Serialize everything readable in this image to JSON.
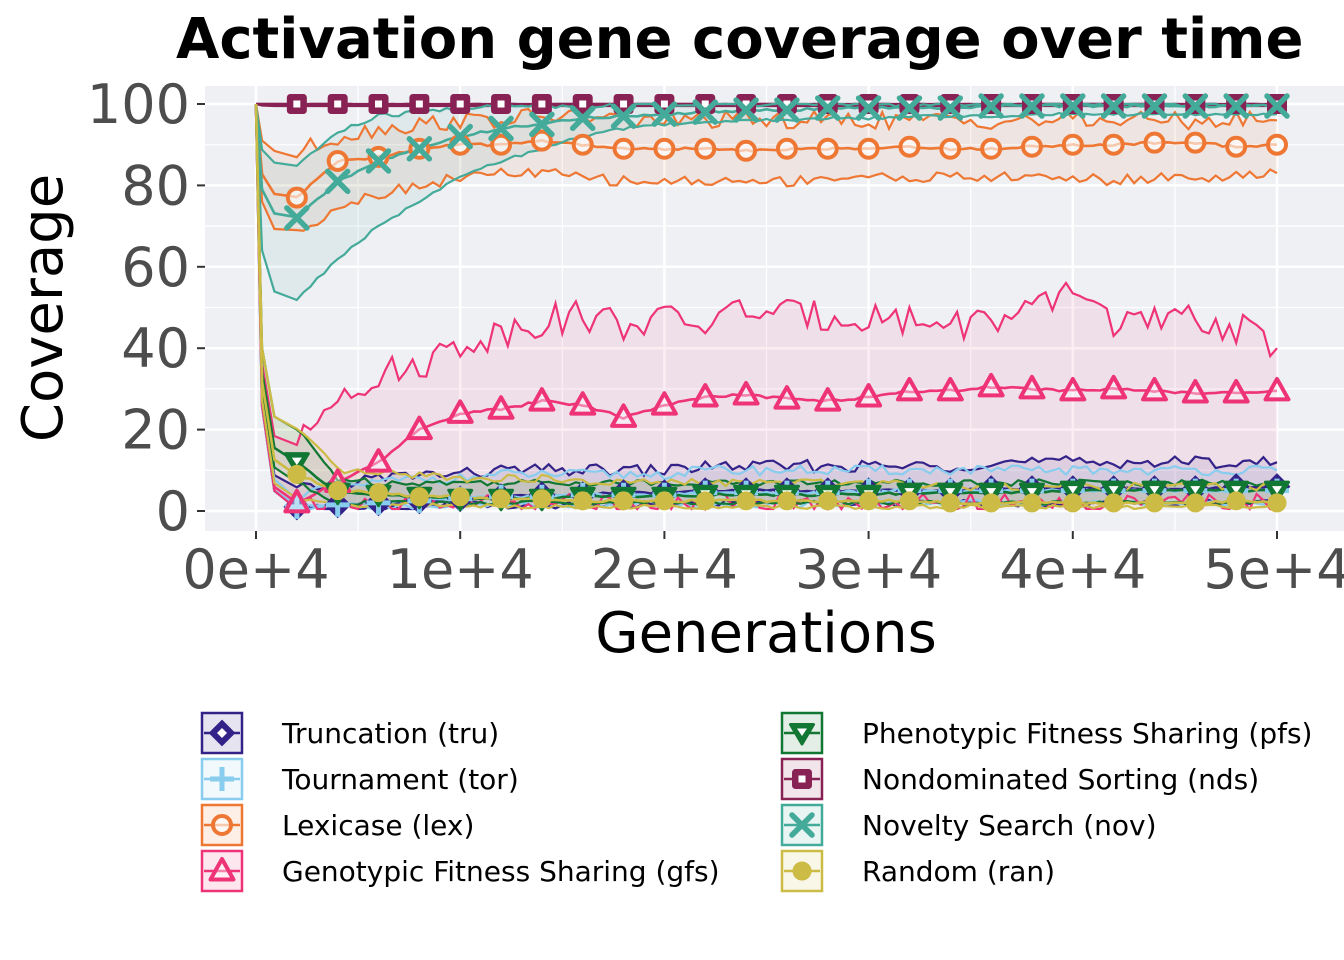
{
  "chart_data": {
    "type": "line",
    "title": "Activation gene coverage over time",
    "xlabel": "Generations",
    "ylabel": "Coverage",
    "xlim": [
      0,
      50000
    ],
    "ylim": [
      0,
      100
    ],
    "x_ticks": [
      0,
      10000,
      20000,
      30000,
      40000,
      50000
    ],
    "x_tick_labels": [
      "0e+4",
      "1e+4",
      "2e+4",
      "3e+4",
      "4e+4",
      "5e+4"
    ],
    "y_ticks": [
      0,
      20,
      40,
      60,
      80,
      100
    ],
    "y_tick_labels": [
      "0",
      "20",
      "40",
      "60",
      "80",
      "100"
    ],
    "grid": true,
    "legend_position": "bottom",
    "marker_x": [
      2000,
      4000,
      6000,
      8000,
      10000,
      12000,
      14000,
      16000,
      18000,
      20000,
      22000,
      24000,
      26000,
      28000,
      30000,
      32000,
      34000,
      36000,
      38000,
      40000,
      42000,
      44000,
      46000,
      48000,
      50000
    ],
    "series": [
      {
        "name": "Truncation (tru)",
        "color": "#332288",
        "marker": "diamond",
        "values": [
          1,
          1.5,
          2,
          2.5,
          3,
          3.5,
          4,
          4,
          4.5,
          4.5,
          5,
          5,
          5,
          5,
          5,
          5,
          5,
          5.5,
          5.5,
          5.5,
          5.5,
          5.5,
          5.5,
          6,
          6
        ],
        "upper": [
          5,
          7,
          8,
          9,
          9,
          10,
          10,
          10,
          10,
          10,
          11,
          11,
          11,
          11,
          11,
          11,
          11,
          12,
          12,
          12,
          12,
          12,
          12,
          12,
          12
        ],
        "lower": [
          1,
          1,
          1,
          1,
          1.5,
          1.5,
          1.5,
          1.5,
          1.5,
          1.5,
          2,
          2,
          2,
          2,
          2,
          2,
          2,
          2,
          2,
          2,
          2,
          2,
          2,
          2,
          2
        ]
      },
      {
        "name": "Tournament (tor)",
        "color": "#88CCEE",
        "marker": "plus",
        "values": [
          1,
          1.5,
          2,
          2.5,
          3,
          3.5,
          3.5,
          4,
          4,
          4,
          4.5,
          4.5,
          4.5,
          4.5,
          5,
          5,
          5,
          5,
          5,
          5,
          5,
          5,
          5,
          5,
          5
        ],
        "upper": [
          4,
          6,
          7,
          8,
          8,
          9,
          9,
          9,
          9,
          9,
          10,
          10,
          10,
          10,
          10,
          10,
          10,
          10,
          10,
          10,
          10,
          10,
          10,
          10,
          10
        ],
        "lower": [
          1,
          1,
          1,
          1,
          1.5,
          1.5,
          1.5,
          1.5,
          1.5,
          1.5,
          1.5,
          1.5,
          1.5,
          1.5,
          2,
          2,
          2,
          2,
          2,
          2,
          2,
          2,
          2,
          2,
          2
        ]
      },
      {
        "name": "Lexicase (lex)",
        "color": "#EE7733",
        "marker": "circle-open",
        "values": [
          77,
          86,
          87,
          89,
          90,
          90,
          91,
          90,
          89,
          89,
          89,
          88.5,
          89,
          89,
          89,
          89.5,
          89,
          89,
          89.5,
          90,
          90,
          90.5,
          90.5,
          89.5,
          90
        ],
        "upper": [
          88,
          92,
          94,
          95,
          96,
          96,
          97,
          97,
          96,
          96,
          96,
          96,
          96,
          96,
          96,
          96,
          96,
          96,
          96,
          96,
          96,
          96,
          96,
          96,
          96
        ],
        "lower": [
          68,
          75,
          78,
          80,
          82,
          83,
          83,
          82,
          81,
          81,
          81,
          81,
          81,
          82,
          82,
          82,
          82,
          82,
          82,
          82,
          81,
          82,
          82,
          82,
          83
        ]
      },
      {
        "name": "Genotypic Fitness Sharing (gfs)",
        "color": "#EE3377",
        "marker": "triangle-up",
        "values": [
          2,
          7,
          12,
          20,
          24,
          25,
          27,
          26,
          23,
          26,
          28,
          28.5,
          27.5,
          27,
          28,
          29.5,
          29.5,
          30.5,
          30,
          29.5,
          30,
          29.5,
          29,
          29,
          29.5
        ],
        "upper": [
          15,
          30,
          33,
          36,
          41,
          44,
          47,
          48,
          46,
          47,
          46,
          50,
          48,
          48,
          48,
          47,
          46,
          47,
          48,
          55,
          47,
          46,
          47,
          45,
          40
        ],
        "lower": [
          1,
          1,
          1.5,
          2,
          2,
          2,
          2,
          2,
          2,
          2,
          2,
          2,
          2,
          2,
          2,
          2,
          2,
          2,
          2,
          2,
          2,
          2,
          2,
          2,
          2
        ]
      },
      {
        "name": "Phenotypic Fitness Sharing (pfs)",
        "color": "#117733",
        "marker": "triangle-down",
        "values": [
          12,
          4.5,
          4,
          3.5,
          3,
          3,
          3,
          3.5,
          3.5,
          3.5,
          4,
          4,
          4,
          4,
          4,
          4.5,
          4.5,
          4.5,
          4.5,
          5,
          5,
          5,
          5,
          5,
          5
        ],
        "upper": [
          20,
          8,
          7,
          7,
          7,
          7,
          7,
          7,
          7,
          7,
          7,
          7,
          7,
          7,
          7,
          7,
          7,
          7,
          7,
          7,
          7,
          7,
          7,
          7,
          7
        ],
        "lower": [
          7,
          2,
          2,
          2,
          2,
          2,
          2,
          2,
          2,
          2,
          2,
          2,
          2,
          2,
          2,
          2,
          2,
          2,
          2,
          2,
          2,
          2,
          2,
          2,
          2
        ]
      },
      {
        "name": "Nondominated Sorting (nds)",
        "color": "#882255",
        "marker": "square-open",
        "values": [
          100,
          100,
          100,
          100,
          100,
          100,
          100,
          100,
          100,
          100,
          100,
          100,
          100,
          100,
          100,
          100,
          100,
          100,
          100,
          100,
          100,
          100,
          100,
          100,
          100
        ],
        "upper": [
          100,
          100,
          100,
          100,
          100,
          100,
          100,
          100,
          100,
          100,
          100,
          100,
          100,
          100,
          100,
          100,
          100,
          100,
          100,
          100,
          100,
          100,
          100,
          100,
          100
        ],
        "lower": [
          99.5,
          99.5,
          99.5,
          99.5,
          99.5,
          99.5,
          99.5,
          99.5,
          99.5,
          99.5,
          99.5,
          99.5,
          99.5,
          99.5,
          99.5,
          99.5,
          99.5,
          99.5,
          99.5,
          99.5,
          99.5,
          99.5,
          99.5,
          99.5,
          99.5
        ]
      },
      {
        "name": "Novelty Search (nov)",
        "color": "#44AA99",
        "marker": "x",
        "values": [
          72,
          81,
          86,
          89,
          92,
          94,
          95,
          96.5,
          97,
          97.5,
          98,
          98.5,
          98.5,
          99,
          99,
          99,
          99,
          99.5,
          99.5,
          99.5,
          99.5,
          99.5,
          99.5,
          99.5,
          99.5
        ],
        "upper": [
          85,
          93,
          97,
          98,
          99,
          99.5,
          99.5,
          99.5,
          100,
          100,
          100,
          100,
          100,
          100,
          100,
          100,
          100,
          100,
          100,
          100,
          100,
          100,
          100,
          100,
          100
        ],
        "lower": [
          52,
          62,
          70,
          76,
          82,
          86,
          89,
          92,
          94,
          95,
          95.5,
          96,
          96,
          96.5,
          96.5,
          97,
          97,
          97,
          97.5,
          97.5,
          97.5,
          97.5,
          97.5,
          97.5,
          97.5
        ]
      },
      {
        "name": "Random (ran)",
        "color": "#CCBB44",
        "marker": "circle-filled",
        "values": [
          9,
          5,
          4.5,
          3.5,
          3.5,
          3,
          3,
          2.5,
          2.5,
          2.5,
          2.5,
          2.5,
          2.5,
          2.5,
          2.5,
          2.5,
          2,
          2,
          2,
          2,
          2,
          2,
          2,
          2.5,
          2
        ],
        "upper": [
          20,
          10,
          9,
          9,
          8,
          8,
          8,
          7,
          7,
          7,
          7,
          7,
          7,
          7,
          7,
          7,
          6,
          6,
          6,
          6,
          6,
          6,
          6,
          6,
          6
        ],
        "lower": [
          3,
          1.5,
          1.5,
          1.5,
          1.5,
          1,
          1,
          1,
          1,
          1,
          1,
          1,
          1,
          1,
          1,
          1,
          1,
          1,
          1,
          1,
          1,
          1,
          1,
          1,
          1
        ]
      }
    ]
  }
}
